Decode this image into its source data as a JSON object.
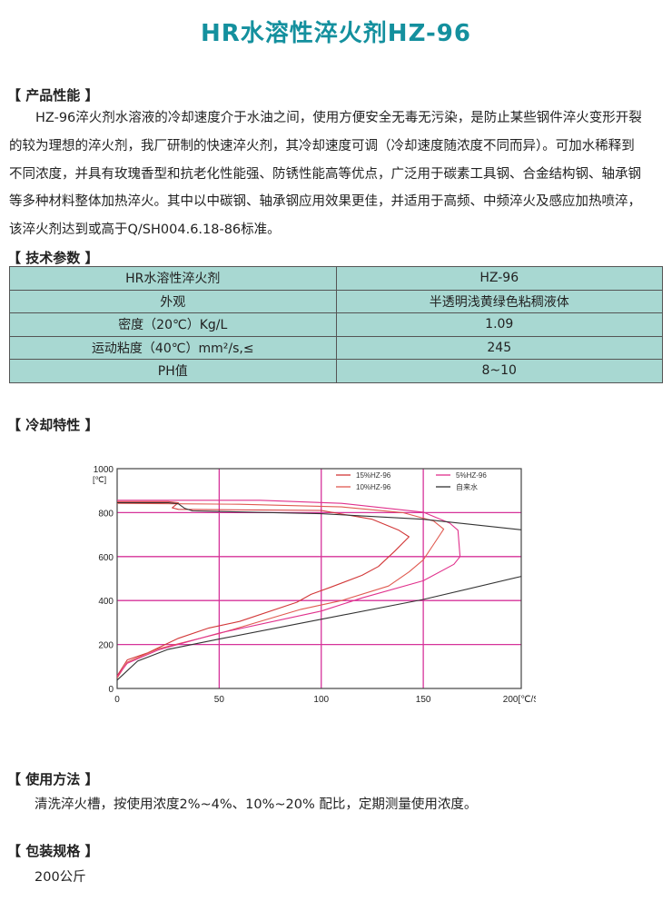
{
  "title": "HR水溶性淬火剂HZ-96",
  "performance": {
    "heading": "【 产品性能 】",
    "lines": [
      "　　HZ-96淬火剂水溶液的冷却速度介于水油之间，使用方便安全无毒无污染，是防止某些钢件淬火变形开裂",
      "的较为理想的淬火剂，我厂研制的快速淬火剂，其冷却速度可调（冷却速度随浓度不同而异）。可加水稀释到",
      "不同浓度，并具有玫瑰香型和抗老化性能强、防锈性能高等优点，广泛用于碳素工具钢、合金结构钢、轴承钢",
      "等多种材料整体加热淬火。其中以中碳钢、轴承钢应用效果更佳，并适用于高频、中频淬火及感应加热喷淬，",
      "该淬火剂达到或高于Q/SH004.6.18-86标准。"
    ]
  },
  "specs": {
    "heading": "【 技术参数 】",
    "rows": [
      [
        "HR水溶性淬火剂",
        "HZ-96"
      ],
      [
        "外观",
        "半透明浅黄绿色粘稠液体"
      ],
      [
        "密度（20℃）Kg/L",
        "1.09"
      ],
      [
        "运动粘度（40℃）mm²/s,≤",
        "245"
      ],
      [
        "PH值",
        "8~10"
      ]
    ]
  },
  "cooling": {
    "heading": "【 冷却特性 】"
  },
  "usage": {
    "heading": "【 使用方法 】",
    "text": "清洗淬火槽，按使用浓度2%~4%、10%~20% 配比，定期测量使用浓度。"
  },
  "packing": {
    "heading": "【 包装规格 】",
    "text": "200公斤"
  },
  "chart_data": {
    "type": "line",
    "ylabel": "[℃]",
    "xlabel": "[℃/S]",
    "xlim": [
      0,
      198
    ],
    "ylim": [
      0,
      1000
    ],
    "xticks": [
      "0",
      "50",
      "100",
      "150",
      "200"
    ],
    "yticks": [
      "0",
      "200",
      "400",
      "600",
      "800",
      "1000"
    ],
    "grid": true,
    "grid_color": "#d6339a",
    "legend": "top-right",
    "series": [
      {
        "name": "15%HZ-96",
        "color": "#d23838",
        "points": [
          [
            0,
            850
          ],
          [
            25,
            850
          ],
          [
            30,
            845
          ],
          [
            27,
            822
          ],
          [
            30,
            815
          ],
          [
            100,
            810
          ],
          [
            125,
            770
          ],
          [
            138,
            720
          ],
          [
            143,
            690
          ],
          [
            136,
            625
          ],
          [
            128,
            555
          ],
          [
            120,
            515
          ],
          [
            105,
            462
          ],
          [
            95,
            428
          ],
          [
            88,
            392
          ],
          [
            60,
            305
          ],
          [
            45,
            275
          ],
          [
            30,
            228
          ],
          [
            15,
            162
          ],
          [
            5,
            130
          ],
          [
            0,
            58
          ]
        ]
      },
      {
        "name": "10%HZ-96",
        "color": "#e05a50",
        "points": [
          [
            0,
            842
          ],
          [
            60,
            838
          ],
          [
            110,
            826
          ],
          [
            140,
            800
          ],
          [
            155,
            762
          ],
          [
            160,
            725
          ],
          [
            155,
            655
          ],
          [
            150,
            585
          ],
          [
            143,
            530
          ],
          [
            133,
            466
          ],
          [
            110,
            400
          ],
          [
            90,
            360
          ],
          [
            50,
            250
          ],
          [
            20,
            180
          ],
          [
            5,
            120
          ],
          [
            0,
            48
          ]
        ]
      },
      {
        "name": "5%HZ-96",
        "color": "#e0308c",
        "points": [
          [
            0,
            856
          ],
          [
            70,
            856
          ],
          [
            110,
            842
          ],
          [
            150,
            802
          ],
          [
            163,
            752
          ],
          [
            167,
            720
          ],
          [
            168,
            600
          ],
          [
            165,
            565
          ],
          [
            150,
            490
          ],
          [
            120,
            412
          ],
          [
            100,
            352
          ],
          [
            50,
            252
          ],
          [
            20,
            175
          ],
          [
            5,
            115
          ],
          [
            0,
            55
          ]
        ]
      },
      {
        "name": "自来水",
        "color": "#333333",
        "points": [
          [
            0,
            845
          ],
          [
            25,
            845
          ],
          [
            30,
            840
          ],
          [
            33,
            820
          ],
          [
            37,
            808
          ],
          [
            100,
            795
          ],
          [
            150,
            770
          ],
          [
            198,
            722
          ]
        ],
        "points2": [
          [
            198,
            510
          ],
          [
            150,
            405
          ],
          [
            100,
            315
          ],
          [
            50,
            225
          ],
          [
            25,
            178
          ],
          [
            10,
            125
          ],
          [
            0,
            38
          ]
        ]
      }
    ]
  }
}
